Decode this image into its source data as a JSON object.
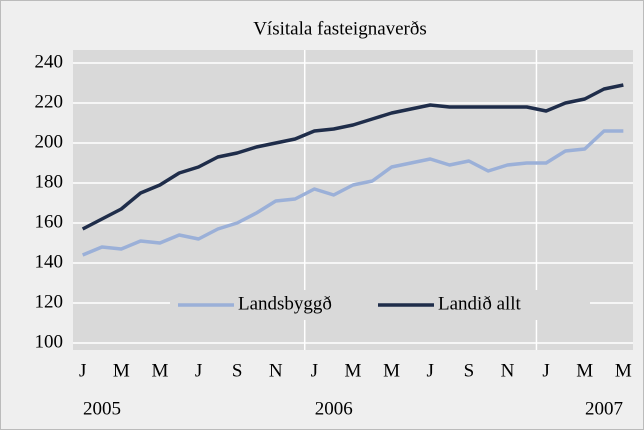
{
  "chart_data": {
    "type": "line",
    "title": "Vísitala fasteignaverðs",
    "categories": [
      "J",
      null,
      "M",
      null,
      "M",
      null,
      "J",
      null,
      "S",
      null,
      "N",
      null,
      "J",
      null,
      "M",
      null,
      "M",
      null,
      "J",
      null,
      "S",
      null,
      "N",
      null,
      "J",
      null,
      "M",
      null,
      "M"
    ],
    "x_groups": [
      {
        "label": "2005",
        "count": 12
      },
      {
        "label": "2006",
        "count": 12
      },
      {
        "label": "2007",
        "count": 5
      }
    ],
    "series": [
      {
        "name": "Landsbyggð",
        "color": "#9bb0d8",
        "values": [
          144,
          148,
          147,
          151,
          150,
          154,
          152,
          157,
          160,
          165,
          171,
          172,
          177,
          174,
          179,
          181,
          188,
          190,
          192,
          189,
          191,
          186,
          189,
          190,
          190,
          196,
          197,
          206,
          206
        ]
      },
      {
        "name": "Landið allt",
        "color": "#1f2d4a",
        "values": [
          157,
          162,
          167,
          175,
          179,
          185,
          188,
          193,
          195,
          198,
          200,
          202,
          206,
          207,
          209,
          212,
          215,
          217,
          219,
          218,
          218,
          218,
          218,
          218,
          216,
          220,
          222,
          227,
          229
        ]
      }
    ],
    "ylim": [
      100,
      240
    ],
    "yticks": [
      100,
      120,
      140,
      160,
      180,
      200,
      220,
      240
    ],
    "grid": true
  }
}
